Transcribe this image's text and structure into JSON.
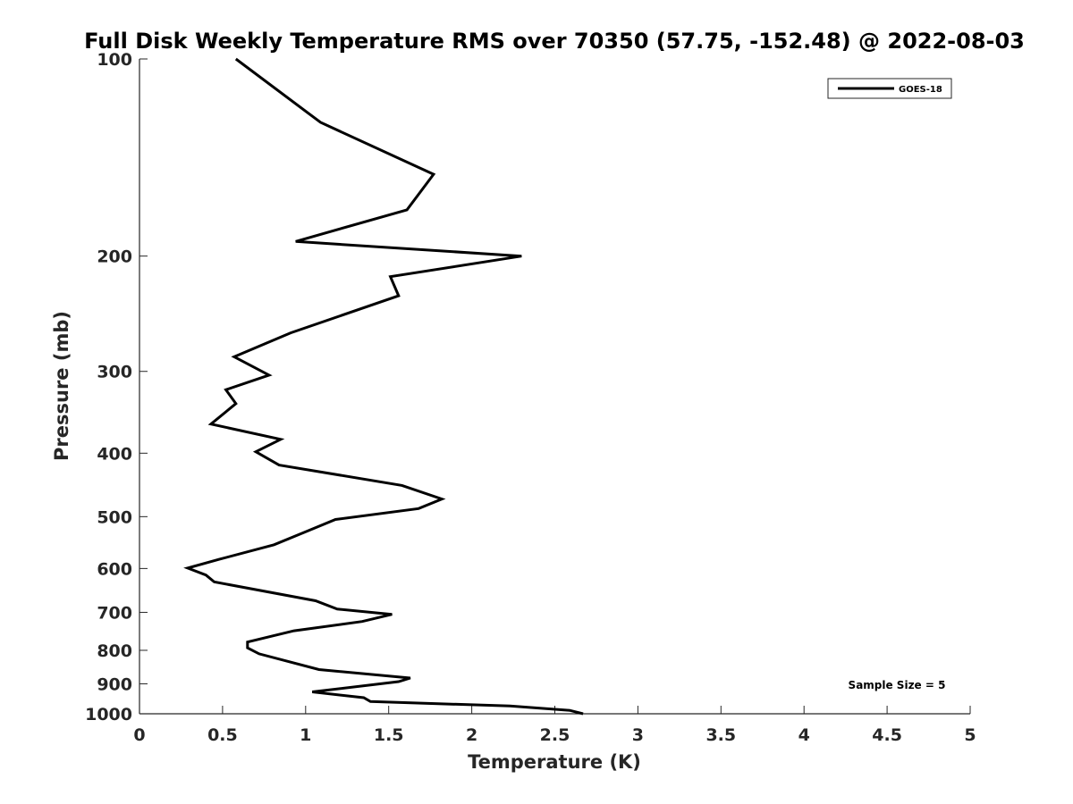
{
  "chart_data": {
    "type": "line",
    "title": "Full Disk Weekly Temperature RMS over 70350 (57.75, -152.48) @ 2022-08-03",
    "xlabel": "Temperature (K)",
    "ylabel": "Pressure (mb)",
    "xlim": [
      0,
      5
    ],
    "ylim": [
      100,
      1000
    ],
    "yscale": "log",
    "y_reversed": true,
    "grid": false,
    "legend_position": "top-right",
    "x_ticks": [
      "0",
      "0.5",
      "1",
      "1.5",
      "2",
      "2.5",
      "3",
      "3.5",
      "4",
      "4.5",
      "5"
    ],
    "y_ticks": [
      "100",
      "200",
      "300",
      "400",
      "500",
      "600",
      "700",
      "800",
      "900",
      "1000"
    ],
    "series": [
      {
        "name": "GOES-18",
        "color": "#000000",
        "x": [
          0.58,
          1.09,
          1.77,
          1.61,
          0.94,
          2.3,
          1.51,
          1.56,
          0.91,
          0.57,
          0.78,
          0.52,
          0.58,
          0.43,
          0.85,
          0.7,
          0.84,
          1.58,
          1.82,
          1.68,
          1.18,
          1.01,
          0.81,
          0.48,
          0.29,
          0.4,
          0.45,
          1.06,
          1.19,
          1.52,
          1.34,
          0.93,
          0.65,
          0.65,
          0.72,
          1.08,
          1.63,
          1.56,
          1.04,
          1.35,
          1.39,
          2.23,
          2.59,
          2.67
        ],
        "y": [
          100,
          125,
          150,
          170,
          190,
          200,
          215,
          230,
          262,
          285,
          304,
          320,
          336,
          361,
          381,
          398,
          417,
          448,
          470,
          486,
          505,
          526,
          552,
          581,
          599,
          614,
          629,
          672,
          692,
          705,
          723,
          747,
          777,
          793,
          810,
          856,
          882,
          893,
          926,
          945,
          958,
          973,
          988,
          1000
        ]
      }
    ],
    "annotations": [
      "Sample Size = 5"
    ]
  }
}
